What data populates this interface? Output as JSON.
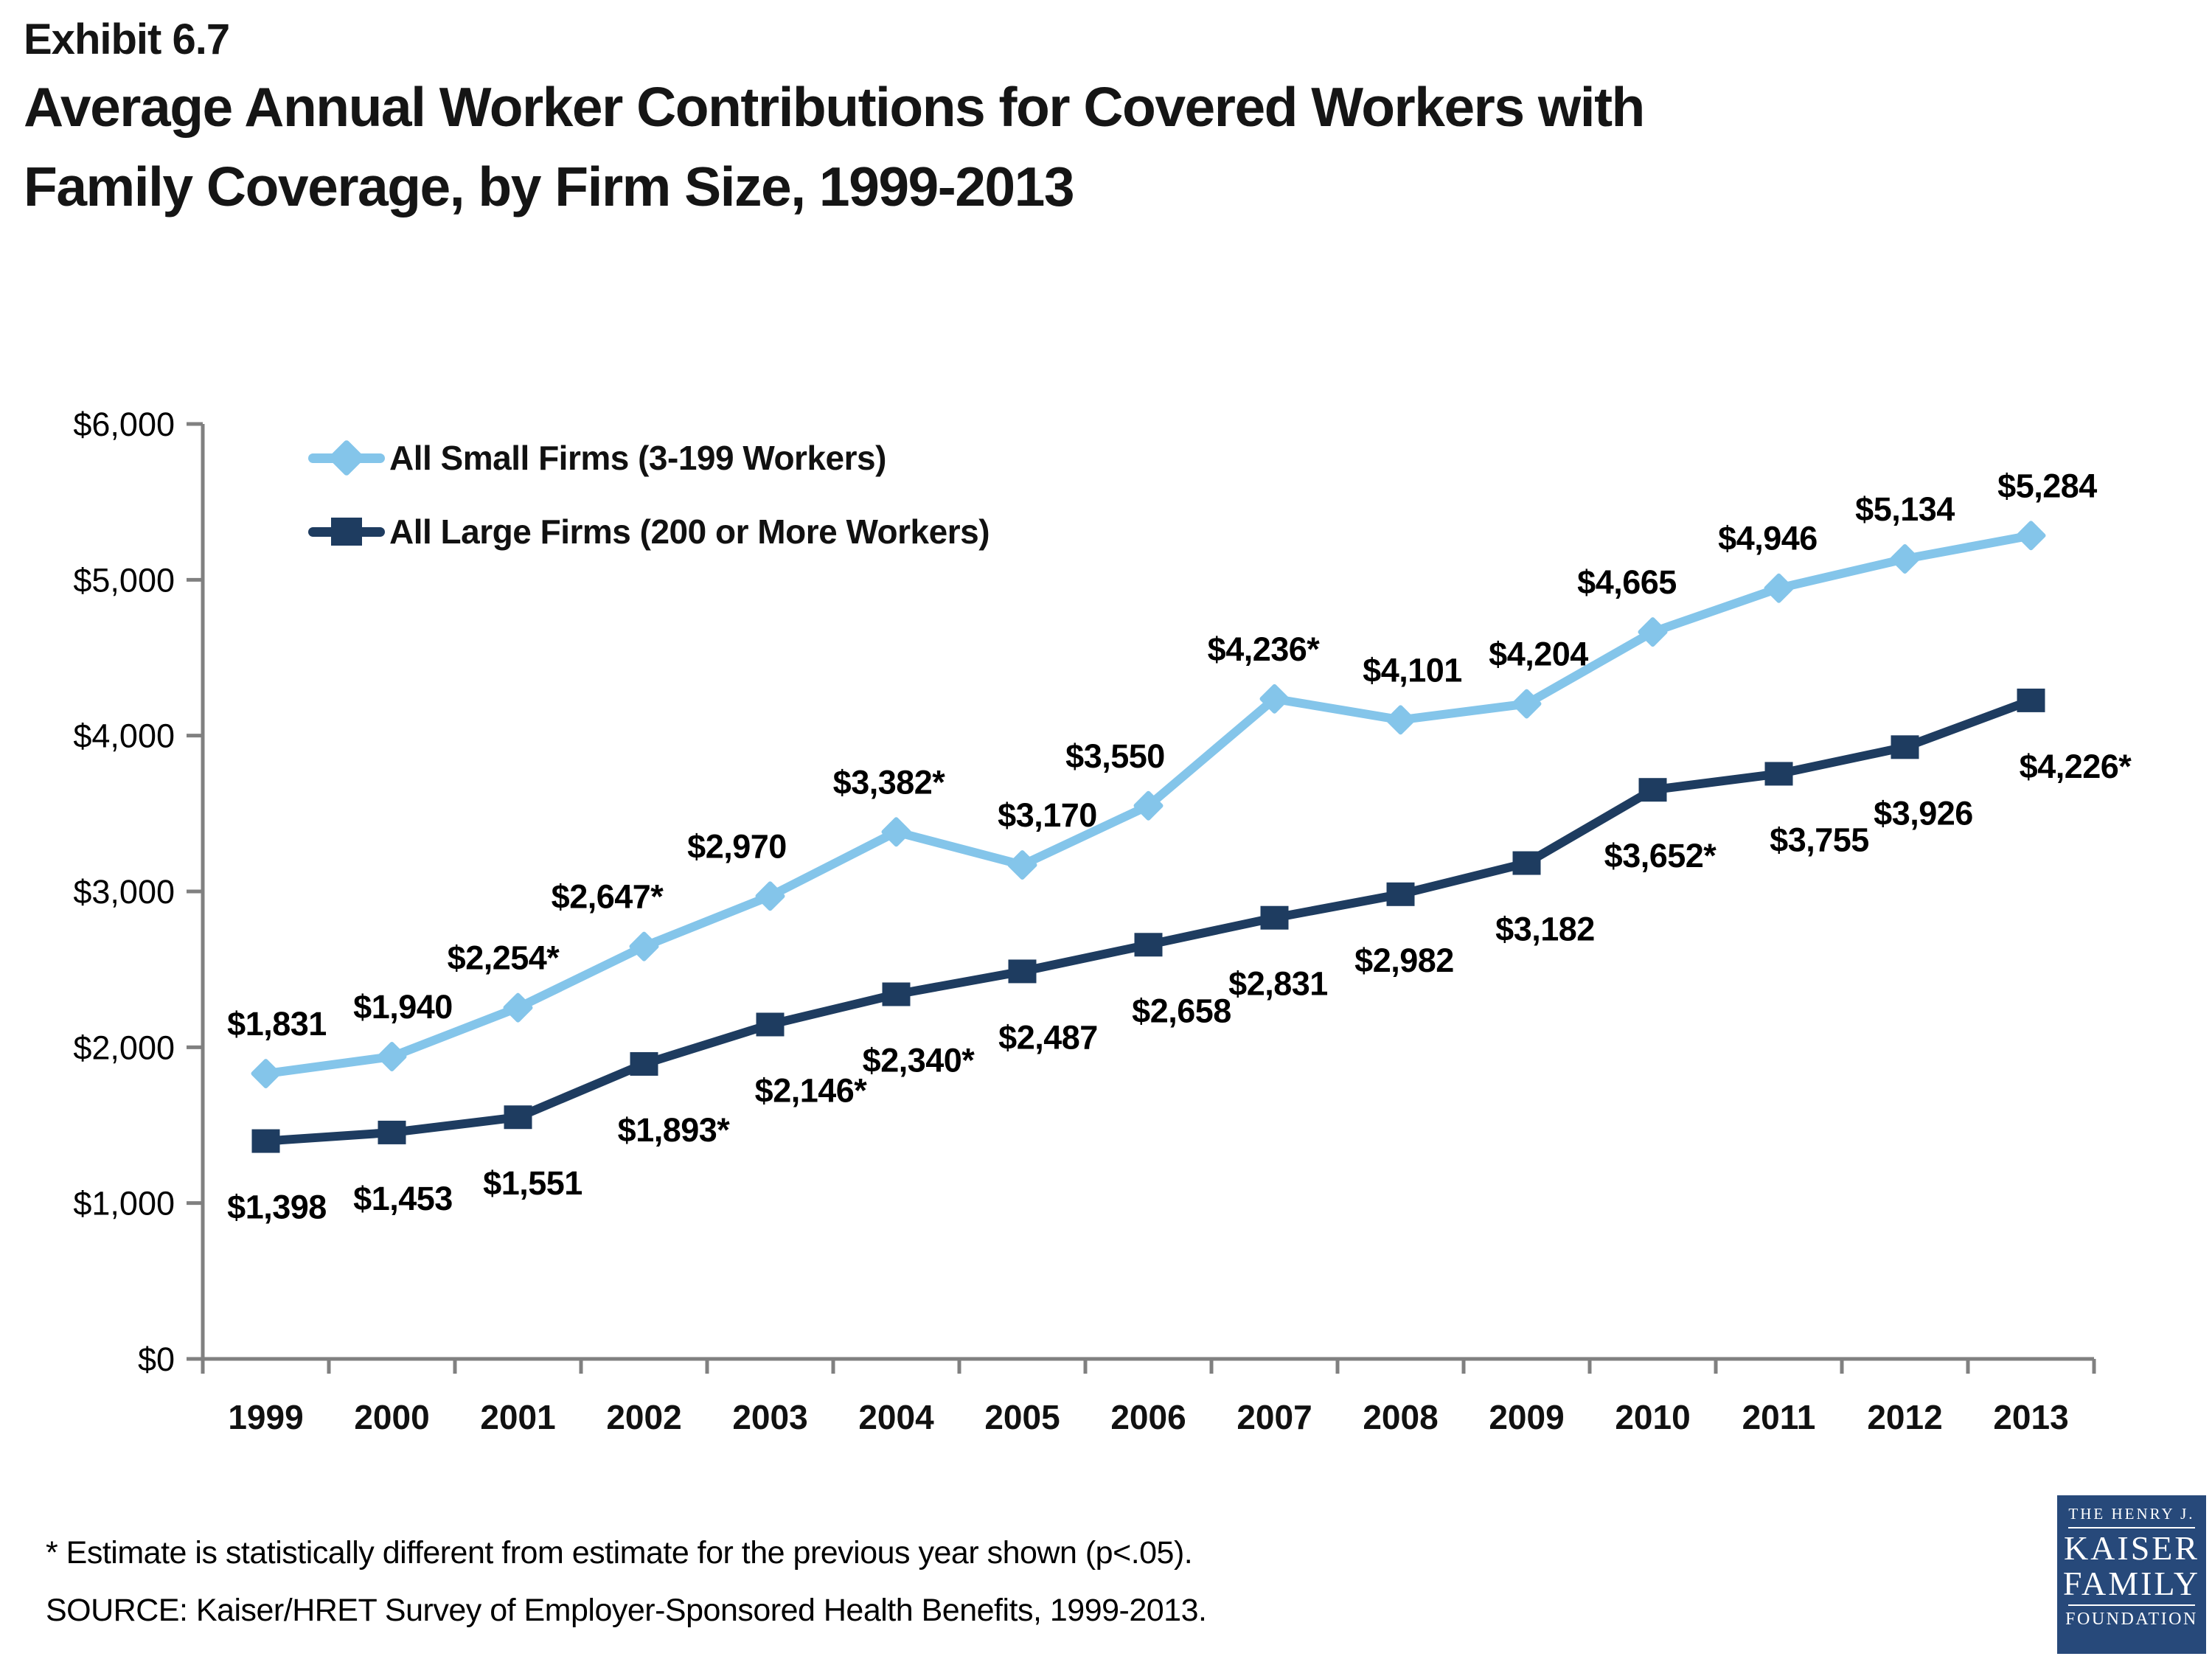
{
  "header": {
    "exhibit": "Exhibit 6.7",
    "title_line1": "Average Annual Worker Contributions for Covered Workers with",
    "title_line2": "Family Coverage, by Firm Size, 1999-2013"
  },
  "chart_data": {
    "type": "line",
    "title": "Average Annual Worker Contributions for Covered Workers with Family Coverage, by Firm Size, 1999-2013",
    "categories": [
      "1999",
      "2000",
      "2001",
      "2002",
      "2003",
      "2004",
      "2005",
      "2006",
      "2007",
      "2008",
      "2009",
      "2010",
      "2011",
      "2012",
      "2013"
    ],
    "y_ticks": [
      "$0",
      "$1,000",
      "$2,000",
      "$3,000",
      "$4,000",
      "$5,000",
      "$6,000"
    ],
    "ylim": [
      0,
      6000
    ],
    "xlabel": "",
    "ylabel": "",
    "grid": "off",
    "legend_position": "top-left-inside",
    "axis_color": "#808080",
    "series": [
      {
        "name": "All Small Firms (3-199 Workers)",
        "color": "#84C5EA",
        "marker": "diamond",
        "values": [
          1831,
          1940,
          2254,
          2647,
          2970,
          3382,
          3170,
          3550,
          4236,
          4101,
          4204,
          4665,
          4946,
          5134,
          5284
        ],
        "labels": [
          "$1,831",
          "$1,940",
          "$2,254*",
          "$2,647*",
          "$2,970",
          "$3,382*",
          "$3,170",
          "$3,550",
          "$4,236*",
          "$4,101",
          "$4,204",
          "$4,665",
          "$4,946",
          "$5,134",
          "$5,284"
        ]
      },
      {
        "name": "All Large Firms (200 or More Workers)",
        "color": "#1E3C60",
        "marker": "square",
        "values": [
          1398,
          1453,
          1551,
          1893,
          2146,
          2340,
          2487,
          2658,
          2831,
          2982,
          3182,
          3652,
          3755,
          3926,
          4226
        ],
        "labels": [
          "$1,398",
          "$1,453",
          "$1,551",
          "$1,893*",
          "$2,146*",
          "$2,340*",
          "$2,487",
          "$2,658",
          "$2,831",
          "$2,982",
          "$3,182",
          "$3,652*",
          "$3,755",
          "$3,926",
          "$4,226*"
        ]
      }
    ]
  },
  "footer": {
    "footnote": "* Estimate is statistically different from estimate for the previous year shown (p<.05).",
    "source": "SOURCE:  Kaiser/HRET Survey of Employer-Sponsored Health Benefits, 1999-2013."
  },
  "logo": {
    "line1": "THE HENRY J.",
    "line2": "KAISER",
    "line3": "FAMILY",
    "line4": "FOUNDATION"
  }
}
